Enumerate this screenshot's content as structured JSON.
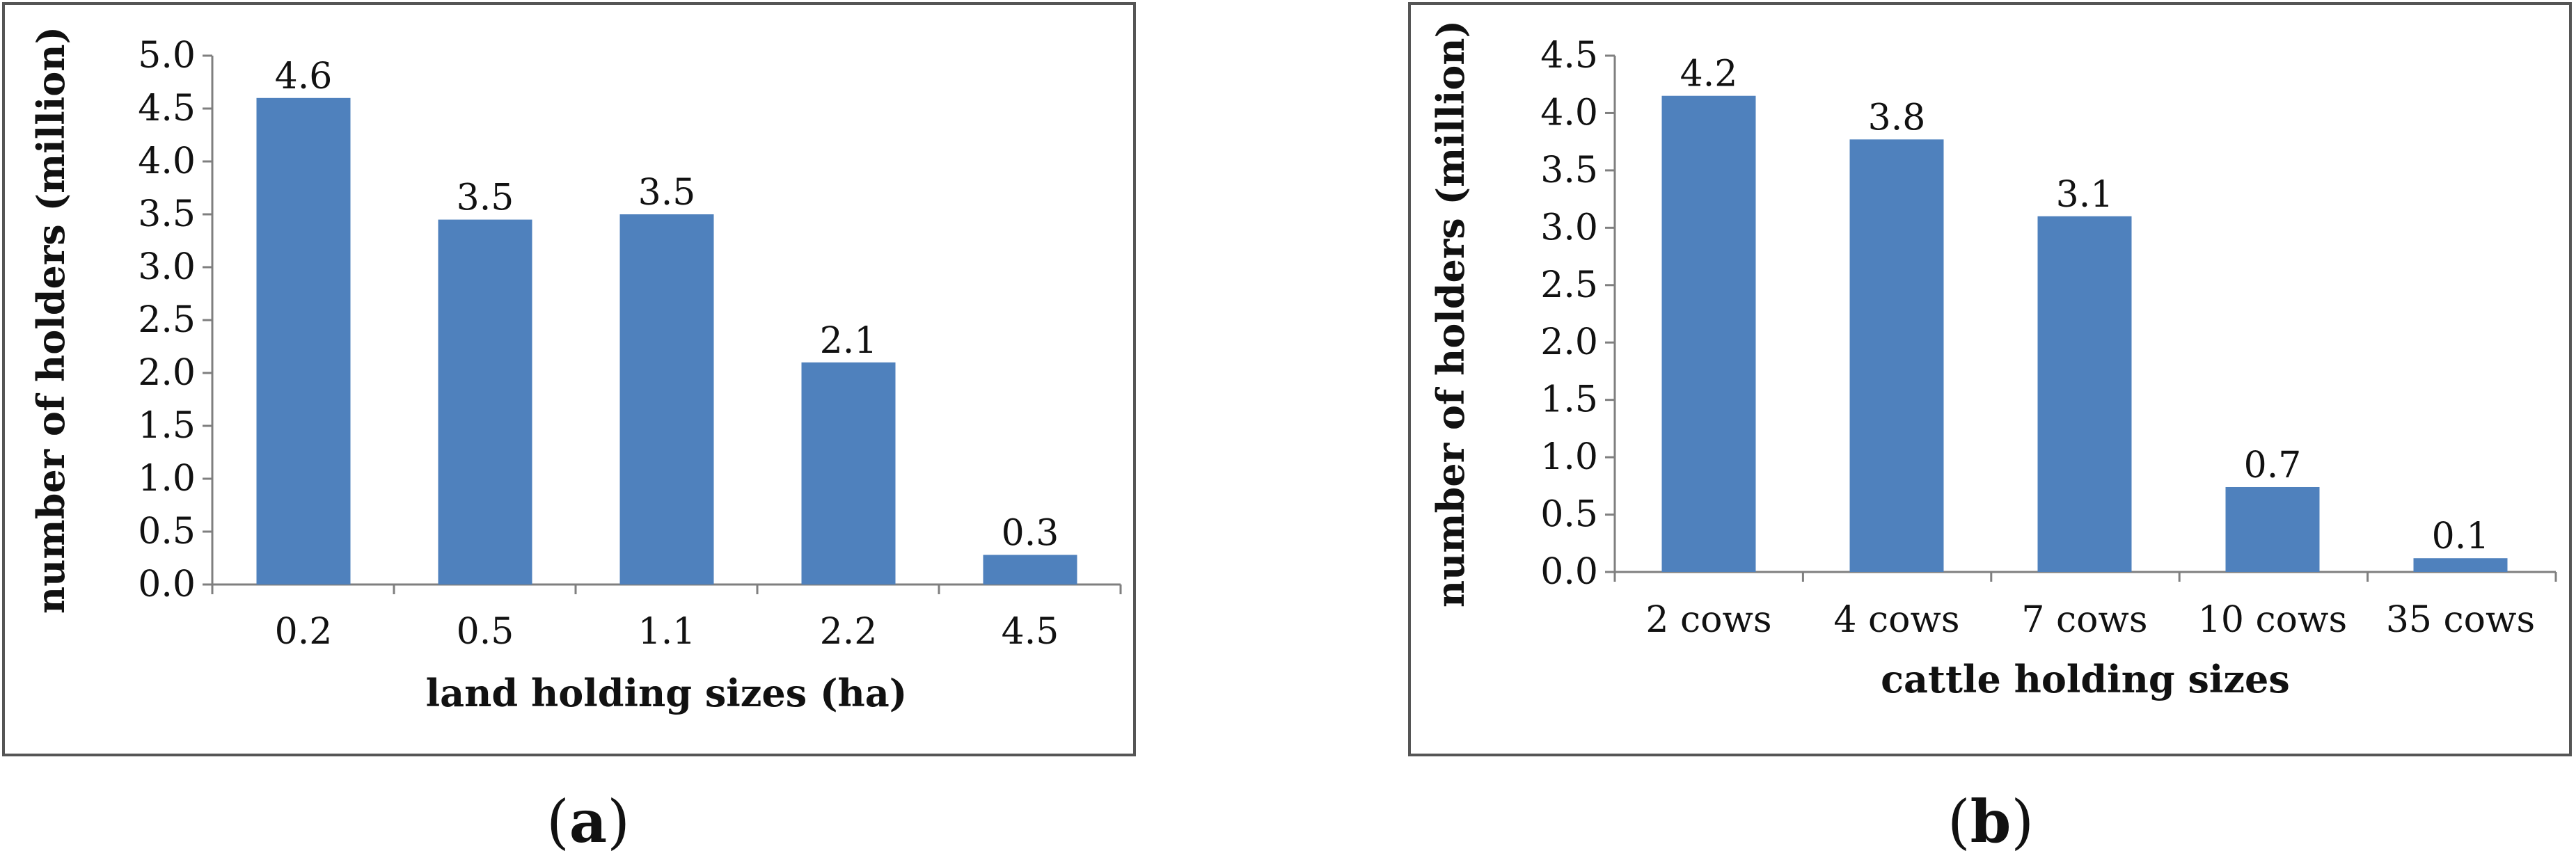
{
  "style": {
    "bar_color": "#4f81bd",
    "axis_color": "#7f7f7f",
    "frame_color": "#555555"
  },
  "chart_data": [
    {
      "type": "bar",
      "panel": {
        "open": "(",
        "letter": "a",
        "close": ")"
      },
      "categories": [
        "0.2",
        "0.5",
        "1.1",
        "2.2",
        "4.5"
      ],
      "values": [
        4.6,
        3.45,
        3.5,
        2.1,
        0.28
      ],
      "data_labels": [
        "4.6",
        "3.5",
        "3.5",
        "2.1",
        "0.3"
      ],
      "xlabel": "land holding sizes (ha)",
      "ylabel": "number of holders (million)",
      "ylim": [
        0,
        5.0
      ],
      "yticks": [
        "0.0",
        "0.5",
        "1.0",
        "1.5",
        "2.0",
        "2.5",
        "3.0",
        "3.5",
        "4.0",
        "4.5",
        "5.0"
      ],
      "grid": false,
      "legend": "none"
    },
    {
      "type": "bar",
      "panel": {
        "open": "(",
        "letter": "b",
        "close": ")"
      },
      "categories": [
        "2 cows",
        "4 cows",
        "7 cows",
        "10 cows",
        "35 cows"
      ],
      "values": [
        4.15,
        3.77,
        3.1,
        0.74,
        0.12
      ],
      "data_labels": [
        "4.2",
        "3.8",
        "3.1",
        "0.7",
        "0.1"
      ],
      "xlabel": "cattle holding sizes",
      "ylabel": "number of holders (million)",
      "ylim": [
        0,
        4.5
      ],
      "yticks": [
        "0.0",
        "0.5",
        "1.0",
        "1.5",
        "2.0",
        "2.5",
        "3.0",
        "3.5",
        "4.0",
        "4.5"
      ],
      "grid": false,
      "legend": "none"
    }
  ]
}
